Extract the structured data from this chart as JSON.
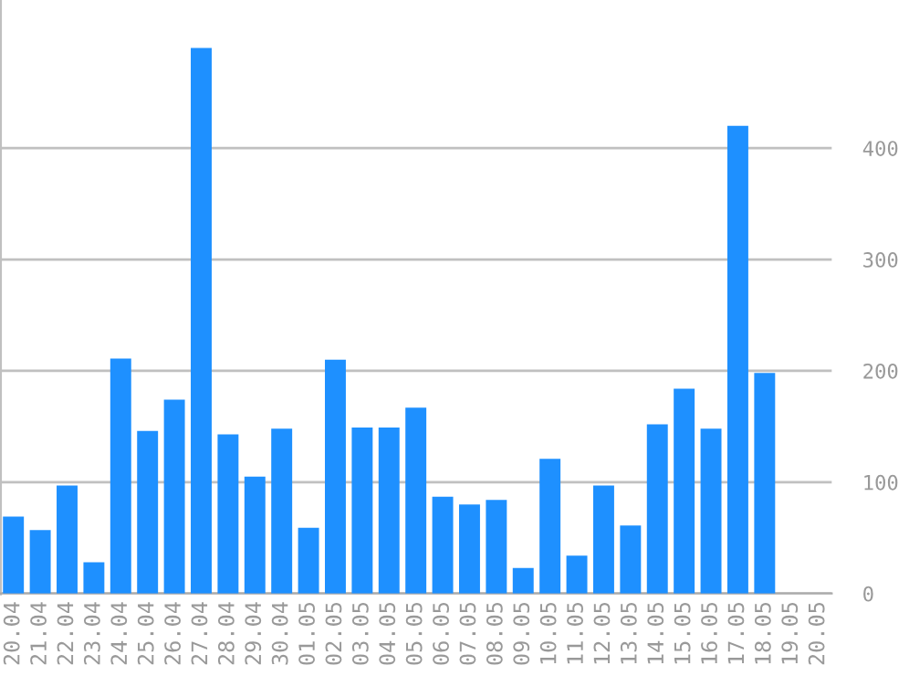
{
  "chart_data": {
    "type": "bar",
    "categories": [
      "20.04",
      "21.04",
      "22.04",
      "23.04",
      "24.04",
      "25.04",
      "26.04",
      "27.04",
      "28.04",
      "29.04",
      "30.04",
      "01.05",
      "02.05",
      "03.05",
      "04.05",
      "05.05",
      "06.05",
      "07.05",
      "08.05",
      "09.05",
      "10.05",
      "11.05",
      "12.05",
      "13.05",
      "14.05",
      "15.05",
      "16.05",
      "17.05",
      "18.05",
      "19.05",
      "20.05"
    ],
    "values": [
      69,
      57,
      97,
      28,
      211,
      146,
      174,
      490,
      143,
      105,
      148,
      59,
      210,
      149,
      149,
      167,
      87,
      80,
      84,
      23,
      121,
      34,
      97,
      61,
      152,
      184,
      148,
      420,
      198,
      0,
      0
    ],
    "color": "#1e90ff",
    "ylim": [
      0,
      533
    ],
    "yticks": [
      0,
      100,
      200,
      300,
      400
    ],
    "grid": "y",
    "legend": false
  }
}
